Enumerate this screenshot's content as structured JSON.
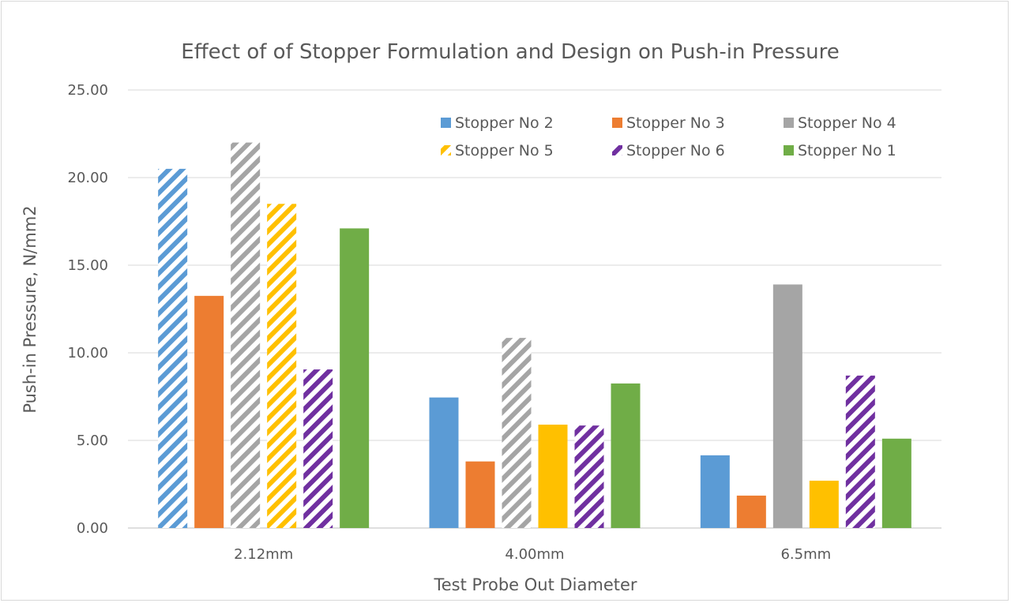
{
  "chart_data": {
    "type": "bar",
    "title": "Effect of of Stopper Formulation and Design on Push-in Pressure",
    "xlabel": "Test Probe Out Diameter",
    "ylabel": "Push-in Pressure, N/mm2",
    "categories": [
      "2.12mm",
      "4.00mm",
      "6.5mm"
    ],
    "ylim": [
      0,
      25
    ],
    "yticks": [
      "0.00",
      "5.00",
      "10.00",
      "15.00",
      "20.00",
      "25.00"
    ],
    "grid": true,
    "legend_position": "top-right",
    "series": [
      {
        "name": "Stopper No 2",
        "color": "#5b9bd5",
        "patterns": [
          "hatch",
          "solid",
          "solid"
        ],
        "values": [
          20.5,
          7.45,
          4.15
        ]
      },
      {
        "name": "Stopper No 3",
        "color": "#ed7d31",
        "patterns": [
          "solid",
          "solid",
          "solid"
        ],
        "values": [
          13.25,
          3.8,
          1.85
        ]
      },
      {
        "name": "Stopper No 4",
        "color": "#a5a5a5",
        "patterns": [
          "hatch",
          "hatch",
          "solid"
        ],
        "values": [
          22.0,
          10.85,
          13.9
        ]
      },
      {
        "name": "Stopper No 5",
        "color": "#ffc000",
        "patterns": [
          "hatch",
          "solid",
          "solid"
        ],
        "values": [
          18.5,
          5.9,
          2.7
        ]
      },
      {
        "name": "Stopper No 6",
        "color": "#7030a0",
        "patterns": [
          "hatch",
          "hatch",
          "hatch"
        ],
        "values": [
          9.05,
          5.85,
          8.7
        ]
      },
      {
        "name": "Stopper No 1",
        "color": "#70ad47",
        "patterns": [
          "solid",
          "solid",
          "solid"
        ],
        "values": [
          17.1,
          8.25,
          5.1
        ]
      }
    ]
  }
}
